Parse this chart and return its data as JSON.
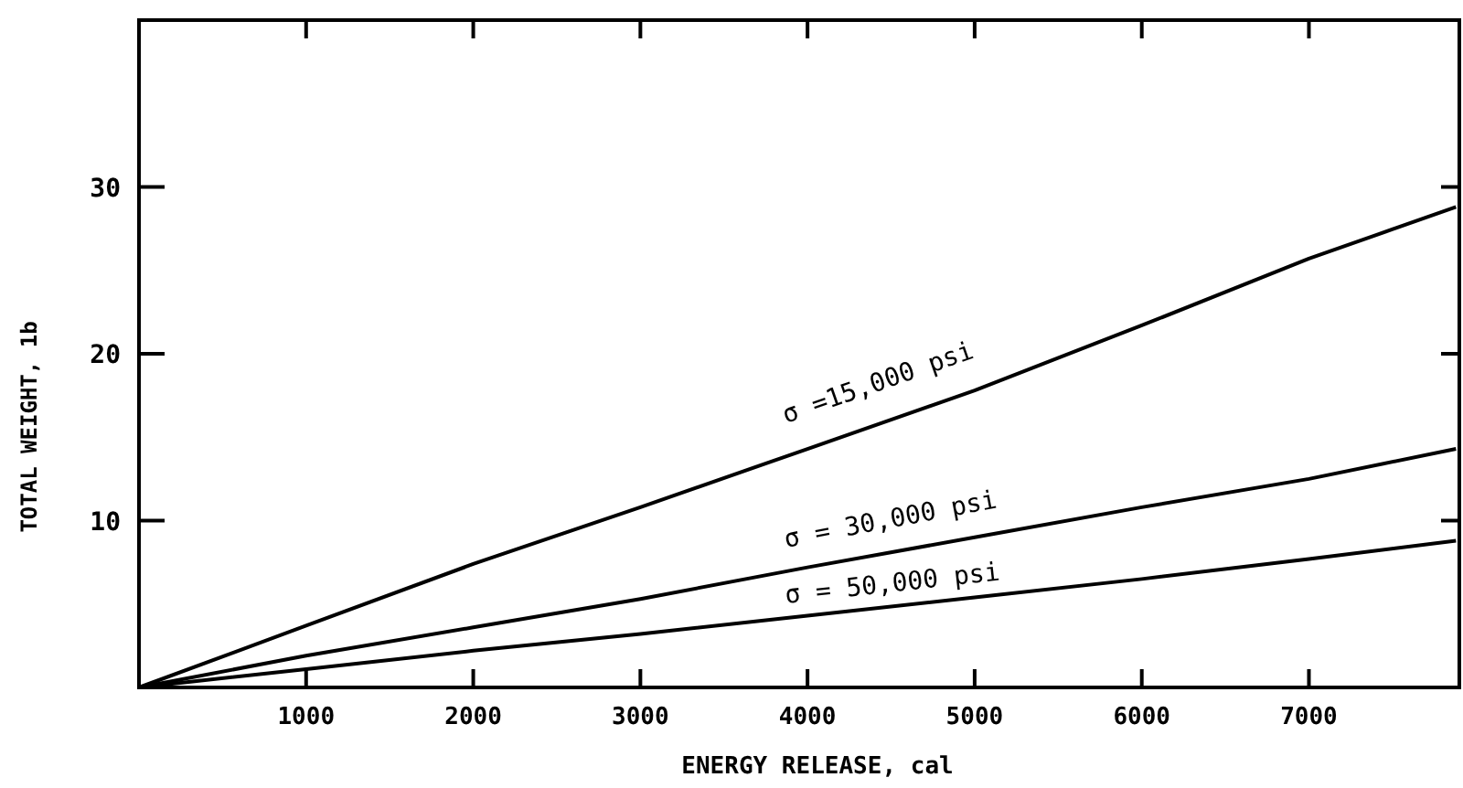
{
  "chart_data": {
    "type": "line",
    "xlabel": "ENERGY RELEASE, cal",
    "ylabel": "TOTAL WEIGHT, 1b",
    "x": [
      0,
      1000,
      2000,
      3000,
      4000,
      5000,
      6000,
      7000,
      7880
    ],
    "series": [
      {
        "name": "σ =15,000 psi",
        "color": "#000000",
        "values": [
          0,
          3.7,
          7.4,
          10.8,
          14.3,
          17.8,
          21.7,
          25.7,
          28.8
        ]
      },
      {
        "name": "σ = 30,000 psi",
        "color": "#000000",
        "values": [
          0,
          1.9,
          3.6,
          5.3,
          7.2,
          9.0,
          10.8,
          12.5,
          14.3
        ]
      },
      {
        "name": "σ = 50,000 psi",
        "color": "#000000",
        "values": [
          0,
          1.1,
          2.2,
          3.2,
          4.3,
          5.4,
          6.5,
          7.7,
          8.8
        ]
      }
    ],
    "xlim": [
      0,
      7900
    ],
    "ylim": [
      0,
      40
    ],
    "xticks": [
      1000,
      2000,
      3000,
      4000,
      5000,
      6000,
      7000
    ],
    "yticks": [
      10,
      20,
      30
    ],
    "grid": false,
    "marker": "none",
    "line_style": "solid"
  }
}
